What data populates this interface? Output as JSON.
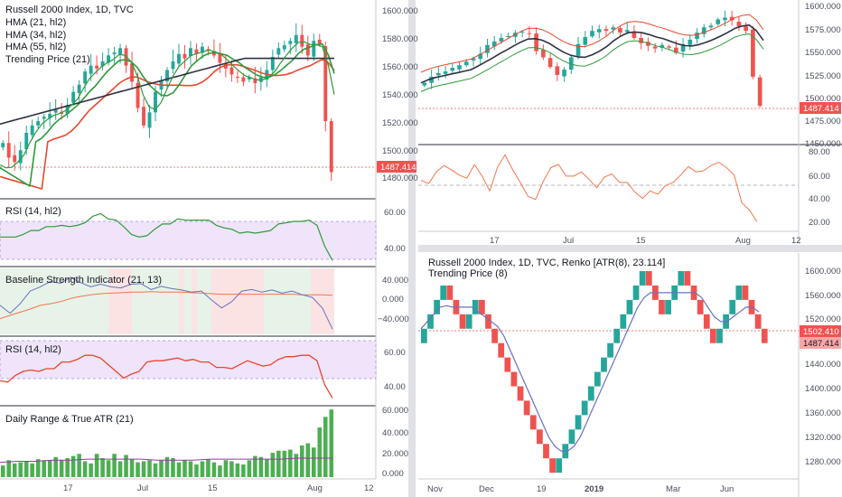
{
  "colors": {
    "up": "#26a69a",
    "down": "#ef5350",
    "green_line": "#2e9b3a",
    "red_line": "#e8472f",
    "dark_line": "#2d3142",
    "blue_line": "#6a6fc2",
    "orange_line": "#f4754b",
    "price_tag": "#ef5350",
    "rsi_band": "#efe4fa",
    "bar_green": "#4caf50"
  },
  "left": {
    "main": {
      "legend": [
        "Russell 2000 Index, 1D, TVC",
        "HMA (21, hl2)",
        "HMA (34, hl2)",
        "HMA (55, hl2)",
        "Trending Price (21)"
      ],
      "price_label": "1487.414",
      "yticks": [
        "1600.000",
        "1580.000",
        "1560.000",
        "1540.000",
        "1520.000",
        "1500.000",
        "1480.000"
      ]
    },
    "rsi1": {
      "legend": "RSI (14, hl2)",
      "yticks": [
        "60.00",
        "40.00"
      ]
    },
    "bsi": {
      "legend": "Baseline Strength Indicator (21, 13)",
      "yticks": [
        "40.000",
        "0.000",
        "−40.000"
      ]
    },
    "rsi2": {
      "legend": "RSI (14, hl2)",
      "yticks": [
        "60.00",
        "40.00"
      ]
    },
    "atr": {
      "legend": "Daily Range & True ATR (21)",
      "yticks": [
        "60.000",
        "40.000",
        "20.000",
        "0.000"
      ]
    },
    "xticks": [
      "17",
      "Jul",
      "15",
      "Aug",
      "12"
    ]
  },
  "topright": {
    "price_label": "1487.414",
    "yticks": [
      "1600.000",
      "1575.000",
      "1550.000",
      "1525.000",
      "1500.000",
      "1475.000",
      "1450.000"
    ],
    "sub_yticks": [
      "80.00",
      "60.00",
      "40.00",
      "20.00"
    ],
    "xticks": [
      "17",
      "Jul",
      "15",
      "Aug",
      "12"
    ]
  },
  "renko": {
    "legend": [
      "Russell 2000 Index, 1D, TVC, Renko [ATR(8), 23.114]",
      "Trending Price (8)"
    ],
    "price_label_1": "1502.410",
    "price_label_2": "1487.414",
    "yticks": [
      "1600.000",
      "1560.000",
      "1520.000",
      "1480.000",
      "1440.000",
      "1400.000",
      "1360.000",
      "1320.000",
      "1280.000"
    ],
    "xticks": [
      "Nov",
      "Dec",
      "19",
      "2019",
      "Mar",
      "Jun"
    ]
  },
  "chart_data": [
    {
      "type": "candlestick",
      "title": "Russell 2000 Index, 1D, TVC",
      "series": [
        {
          "name": "Russell 2000 Index, 1D, TVC",
          "close": [
            1507,
            1497,
            1494,
            1502,
            1514,
            1519,
            1522,
            1525,
            1527,
            1530,
            1527,
            1533,
            1542,
            1547,
            1556,
            1560,
            1558,
            1563,
            1567,
            1569,
            1572,
            1560,
            1549,
            1531,
            1519,
            1528,
            1542,
            1550,
            1557,
            1563,
            1568,
            1565,
            1572,
            1568,
            1573,
            1570,
            1567,
            1562,
            1558,
            1554,
            1552,
            1549,
            1552,
            1548,
            1552,
            1557,
            1566,
            1572,
            1574,
            1577,
            1581,
            1573,
            1567,
            1577,
            1575,
            1522,
            1487
          ]
        },
        {
          "name": "HMA (21, hl2)"
        },
        {
          "name": "HMA (34, hl2)"
        },
        {
          "name": "HMA (55, hl2)"
        },
        {
          "name": "Trending Price (21)"
        }
      ],
      "ylim": [
        1470,
        1605
      ],
      "x_ticks": [
        "17",
        "Jul",
        "15",
        "Aug",
        "12"
      ],
      "last_price": 1487.414
    },
    {
      "type": "line",
      "title": "RSI (14, hl2)",
      "series": [
        {
          "name": "RSI (14, hl2)",
          "values": [
            47,
            47,
            47,
            49,
            52,
            52,
            55,
            55,
            56,
            55,
            56,
            58,
            63,
            65,
            61,
            60,
            55,
            49,
            47,
            48,
            53,
            57,
            57,
            61,
            60,
            60,
            60,
            60,
            56,
            54,
            53,
            50,
            51,
            50,
            51,
            52,
            57,
            58,
            59,
            59,
            60,
            56,
            40,
            29
          ]
        }
      ],
      "ylim": [
        25,
        75
      ]
    },
    {
      "type": "line",
      "title": "Baseline Strength Indicator (21, 13)",
      "series": [
        {
          "name": "Baseline Strength Indicator (21, 13)",
          "values": [
            -15,
            -30,
            -12,
            12,
            20,
            30,
            27,
            38,
            28,
            20,
            25,
            20,
            18,
            25,
            26,
            15,
            21,
            17,
            14,
            10,
            12,
            -5,
            -20,
            -8,
            12,
            15,
            10,
            14,
            8,
            12,
            5,
            0,
            -20,
            -60
          ]
        },
        {
          "name": "signal",
          "values": [
            -40,
            -34,
            -28,
            -22,
            -15,
            -12,
            -8,
            -2,
            2,
            5,
            7,
            8,
            9,
            10,
            10,
            11,
            10,
            10,
            10,
            9,
            8,
            7,
            6,
            6,
            6,
            6,
            6,
            6,
            6,
            6,
            5,
            5,
            5,
            4
          ]
        }
      ],
      "ylim": [
        -70,
        55
      ]
    },
    {
      "type": "line",
      "title": "RSI (14, hl2)",
      "series": [
        {
          "name": "RSI (14, hl2)",
          "values": [
            43,
            42,
            47,
            50,
            51,
            50,
            52,
            52,
            57,
            57,
            59,
            62,
            62,
            60,
            55,
            50,
            45,
            48,
            50,
            57,
            58,
            58,
            59,
            60,
            58,
            59,
            57,
            57,
            53,
            53,
            52,
            55,
            58,
            56,
            54,
            55,
            59,
            61,
            61,
            62,
            62,
            58,
            40,
            30
          ]
        }
      ],
      "ylim": [
        25,
        75
      ]
    },
    {
      "type": "bar",
      "title": "Daily Range & True ATR (21)",
      "series": [
        {
          "name": "Daily Range & True ATR (21)",
          "values": [
            11,
            16,
            13,
            14,
            15,
            13,
            17,
            16,
            16,
            19,
            16,
            18,
            20,
            22,
            15,
            13,
            22,
            18,
            16,
            22,
            15,
            21,
            17,
            14,
            15,
            16,
            13,
            16,
            19,
            18,
            14,
            16,
            15,
            12,
            15,
            17,
            14,
            11,
            16,
            15,
            13,
            12,
            16,
            20,
            19,
            17,
            23,
            25,
            25,
            26,
            22,
            30,
            32,
            28,
            47,
            57,
            64
          ]
        },
        {
          "name": "ATR",
          "values": [
            14,
            15,
            15,
            16,
            16,
            17,
            17,
            17,
            17,
            16,
            16,
            16,
            17,
            17,
            17,
            17,
            17,
            18,
            18,
            18
          ]
        }
      ],
      "ylim": [
        0,
        65
      ]
    },
    {
      "type": "candlestick",
      "title": "",
      "series": [
        {
          "name": "price",
          "close": [
            1513,
            1520,
            1524,
            1526,
            1530,
            1533,
            1537,
            1541,
            1546,
            1556,
            1560,
            1564,
            1566,
            1570,
            1571,
            1569,
            1549,
            1542,
            1531,
            1522,
            1528,
            1542,
            1557,
            1565,
            1572,
            1574,
            1572,
            1576,
            1570,
            1573,
            1564,
            1558,
            1555,
            1552,
            1556,
            1553,
            1547,
            1557,
            1562,
            1570,
            1576,
            1578,
            1585,
            1587,
            1584,
            1577,
            1572,
            1520,
            1487
          ]
        },
        {
          "name": "upper band"
        },
        {
          "name": "middle band"
        },
        {
          "name": "lower band"
        }
      ],
      "ylim": [
        1445,
        1605
      ],
      "last_price": 1487.414
    },
    {
      "type": "line",
      "title": "",
      "series": [
        {
          "name": "oscillator",
          "values": [
            58,
            55,
            66,
            72,
            68,
            63,
            60,
            73,
            62,
            48,
            70,
            82,
            68,
            56,
            43,
            40,
            57,
            70,
            73,
            62,
            62,
            66,
            59,
            51,
            61,
            64,
            56,
            56,
            47,
            41,
            48,
            45,
            53,
            56,
            63,
            71,
            66,
            67,
            72,
            75,
            70,
            63,
            37,
            30,
            19
          ]
        }
      ],
      "ylim": [
        10,
        90
      ]
    },
    {
      "type": "renko",
      "title": "Russell 2000 Index, 1D, TVC, Renko [ATR(8), 23.114]",
      "box_size": 23.114,
      "series": [
        {
          "name": "Russell 2000 Index, 1D, TVC, Renko [ATR(8), 23.114]",
          "closes": [
            1502,
            1525,
            1548,
            1571,
            1548,
            1525,
            1502,
            1525,
            1548,
            1525,
            1502,
            1479,
            1456,
            1433,
            1410,
            1387,
            1364,
            1341,
            1318,
            1295,
            1272,
            1295,
            1318,
            1341,
            1364,
            1387,
            1410,
            1433,
            1456,
            1479,
            1502,
            1525,
            1548,
            1571,
            1594,
            1571,
            1548,
            1525,
            1548,
            1571,
            1594,
            1571,
            1548,
            1525,
            1502,
            1479,
            1502,
            1525,
            1548,
            1571,
            1548,
            1525,
            1502,
            1479
          ]
        },
        {
          "name": "Trending Price (8)"
        }
      ],
      "ylim": [
        1265,
        1620
      ],
      "x_ticks": [
        "Nov",
        "Dec",
        "19",
        "2019",
        "Mar",
        "Jun"
      ],
      "last_price": 1487.414
    }
  ]
}
